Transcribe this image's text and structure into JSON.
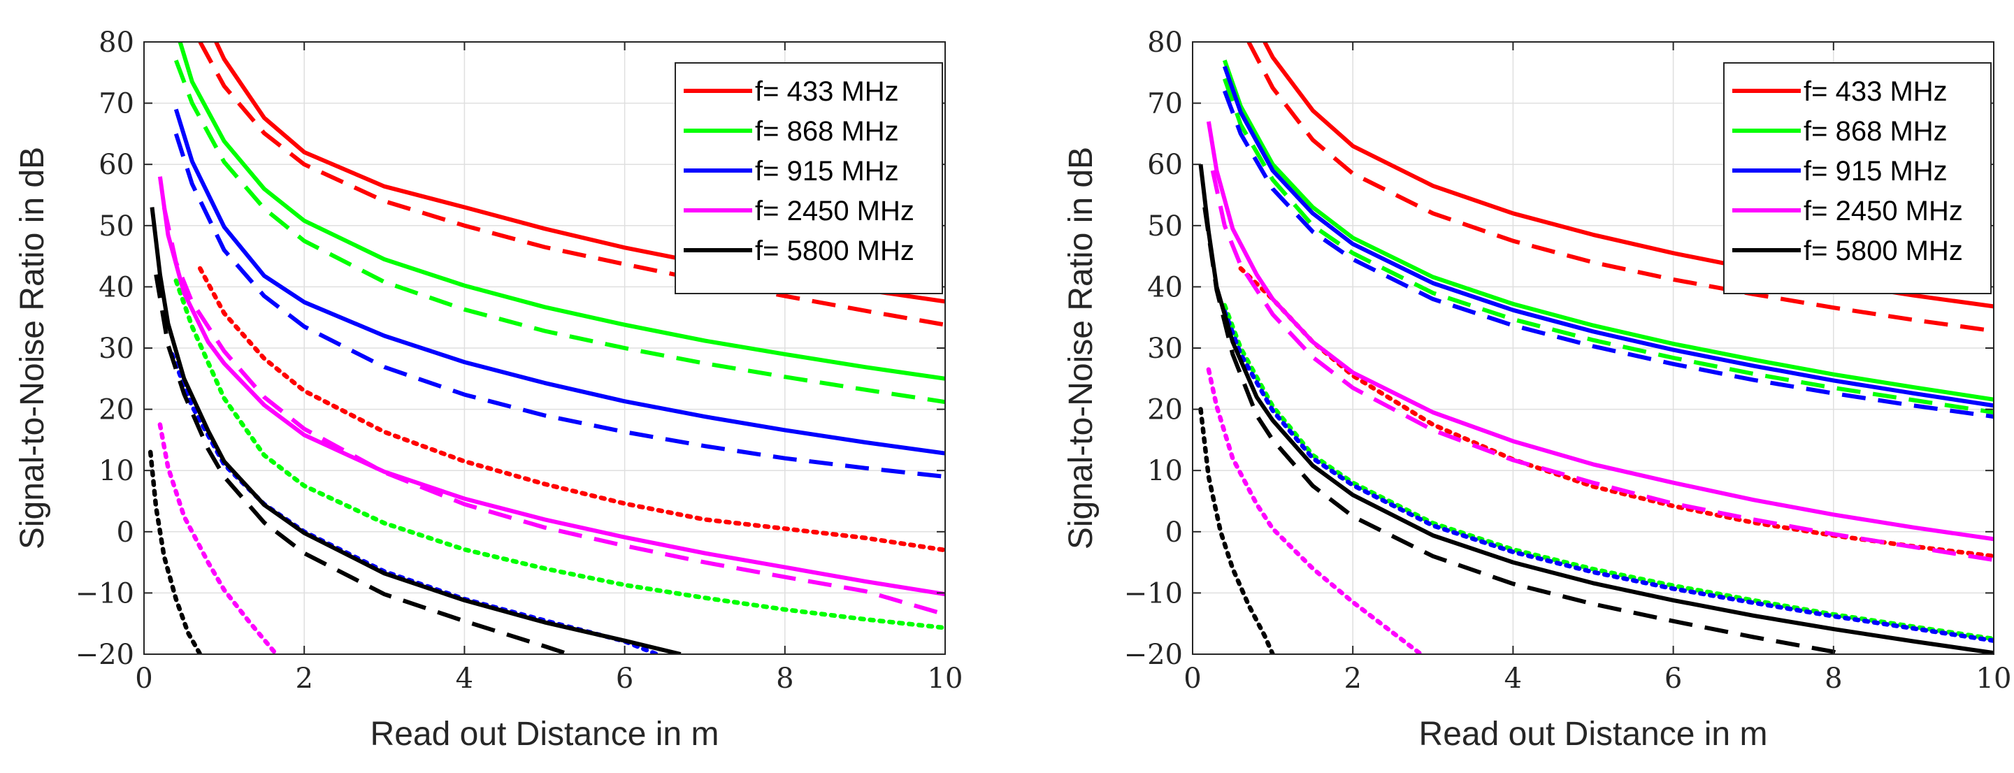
{
  "chart_data": [
    {
      "type": "line",
      "xlabel": "Read out Distance in m",
      "ylabel": "Signal-to-Noise Ratio in dB",
      "xlim": [
        0,
        10
      ],
      "ylim": [
        -20,
        80
      ],
      "xticks": [
        "0",
        "2",
        "4",
        "6",
        "8",
        "10"
      ],
      "yticks": [
        "−20",
        "−10",
        "0",
        "10",
        "20",
        "30",
        "40",
        "50",
        "60",
        "70",
        "80"
      ],
      "grid": true,
      "legend_position": "top-right",
      "legend": [
        {
          "label": "f= 433 MHz",
          "color": "#ff0000"
        },
        {
          "label": "f= 868 MHz",
          "color": "#00ff00"
        },
        {
          "label": "f= 915 MHz",
          "color": "#0000ff"
        },
        {
          "label": "f= 2450 MHz",
          "color": "#ff00ff"
        },
        {
          "label": "f= 5800 MHz",
          "color": "#000000"
        }
      ],
      "series": [
        {
          "name": "433 MHz solid",
          "color": "#ff0000",
          "style": "solid",
          "x": [
            0.9,
            1,
            1.5,
            2,
            3,
            4,
            5,
            6,
            7,
            8,
            9,
            10
          ],
          "y": [
            80,
            77.2,
            67.6,
            62.0,
            56.4,
            53.0,
            49.5,
            46.4,
            43.8,
            41.5,
            39.5,
            37.6
          ]
        },
        {
          "name": "433 MHz dashed",
          "color": "#ff0000",
          "style": "dashed",
          "x": [
            0.7,
            1,
            1.5,
            2,
            3,
            4,
            5,
            6,
            7,
            8,
            9,
            10
          ],
          "y": [
            80,
            72.8,
            65.1,
            60.0,
            54.0,
            50.0,
            46.5,
            43.7,
            41.0,
            38.5,
            36.1,
            33.8
          ]
        },
        {
          "name": "433 MHz dotted",
          "color": "#ff0000",
          "style": "dotted",
          "x": [
            0.7,
            1,
            1.5,
            2,
            3,
            4,
            5,
            6,
            7,
            8,
            9,
            10
          ],
          "y": [
            43.0,
            35.7,
            28.3,
            23.0,
            16.3,
            11.5,
            7.8,
            4.6,
            2.0,
            0.5,
            -1.0,
            -3.0
          ]
        },
        {
          "name": "868 MHz solid",
          "color": "#00ff00",
          "style": "solid",
          "x": [
            0.45,
            0.6,
            1,
            1.5,
            2,
            3,
            4,
            5,
            6,
            7,
            8,
            9,
            10
          ],
          "y": [
            80,
            73.5,
            63.8,
            56.0,
            50.8,
            44.5,
            40.2,
            36.7,
            33.8,
            31.2,
            29.0,
            26.9,
            25.0
          ]
        },
        {
          "name": "868 MHz dashed",
          "color": "#00ff00",
          "style": "dashed",
          "x": [
            0.4,
            0.6,
            1,
            1.5,
            2,
            3,
            4,
            5,
            6,
            7,
            8,
            9,
            10
          ],
          "y": [
            77.0,
            70.0,
            60.4,
            52.8,
            47.5,
            40.8,
            36.3,
            32.8,
            30.0,
            27.5,
            25.3,
            23.2,
            21.2
          ]
        },
        {
          "name": "868 MHz dotted",
          "color": "#00ff00",
          "style": "dotted",
          "x": [
            0.4,
            0.6,
            1,
            1.5,
            2,
            3,
            4,
            5,
            6,
            7,
            8,
            9,
            10
          ],
          "y": [
            41.0,
            33.5,
            21.8,
            12.5,
            7.5,
            1.4,
            -2.9,
            -6.0,
            -8.7,
            -10.8,
            -12.7,
            -14.3,
            -15.7
          ]
        },
        {
          "name": "915 MHz solid",
          "color": "#0000ff",
          "style": "solid",
          "x": [
            0.4,
            0.6,
            1,
            1.5,
            2,
            3,
            4,
            5,
            6,
            7,
            8,
            9,
            10
          ],
          "y": [
            69.0,
            60.5,
            49.8,
            41.8,
            37.5,
            32.0,
            27.7,
            24.3,
            21.3,
            18.8,
            16.6,
            14.6,
            12.8
          ]
        },
        {
          "name": "915 MHz dashed",
          "color": "#0000ff",
          "style": "dashed",
          "x": [
            0.4,
            0.6,
            1,
            1.5,
            2,
            3,
            4,
            5,
            6,
            7,
            8,
            9,
            10
          ],
          "y": [
            65.0,
            56.8,
            46.0,
            38.5,
            33.5,
            26.9,
            22.4,
            19.0,
            16.3,
            14.0,
            12.0,
            10.4,
            9.0
          ]
        },
        {
          "name": "915 MHz dotted",
          "color": "#0000ff",
          "style": "dotted",
          "x": [
            0.35,
            0.6,
            1,
            1.5,
            2,
            3,
            4,
            5,
            6,
            6.4
          ],
          "y": [
            29.0,
            20.5,
            11.0,
            4.5,
            0.0,
            -6.5,
            -11.0,
            -14.5,
            -17.9,
            -20
          ]
        },
        {
          "name": "2450 MHz solid",
          "color": "#ff00ff",
          "style": "solid",
          "x": [
            0.2,
            0.3,
            0.5,
            0.8,
            1,
            1.5,
            2,
            3,
            4,
            5,
            6,
            7,
            8,
            9,
            10
          ],
          "y": [
            58.0,
            48.5,
            39.0,
            31.0,
            27.5,
            20.7,
            15.8,
            9.8,
            5.4,
            2.0,
            -0.9,
            -3.5,
            -5.8,
            -8.1,
            -10.2
          ]
        },
        {
          "name": "2450 MHz dashed",
          "color": "#ff00ff",
          "style": "dashed",
          "x": [
            0.25,
            0.4,
            0.6,
            1,
            1.5,
            2,
            3,
            4,
            5,
            6,
            7,
            8,
            9,
            10
          ],
          "y": [
            53.0,
            44.0,
            37.5,
            29.5,
            22.0,
            16.8,
            9.7,
            4.5,
            0.7,
            -2.3,
            -5.0,
            -7.4,
            -9.7,
            -13.5
          ]
        },
        {
          "name": "2450 MHz dotted",
          "color": "#ff00ff",
          "style": "dotted",
          "x": [
            0.2,
            0.3,
            0.5,
            0.8,
            1,
            1.3,
            1.65
          ],
          "y": [
            17.5,
            10.5,
            2.5,
            -5.0,
            -9.5,
            -14.5,
            -20
          ]
        },
        {
          "name": "5800 MHz solid",
          "color": "#000000",
          "style": "solid",
          "x": [
            0.1,
            0.2,
            0.3,
            0.5,
            0.8,
            1,
            1.5,
            2,
            3,
            4,
            5,
            6,
            6.7
          ],
          "y": [
            53.0,
            42.0,
            34.0,
            25.0,
            16.5,
            11.5,
            4.4,
            -0.2,
            -6.8,
            -11.2,
            -14.8,
            -17.8,
            -20
          ]
        },
        {
          "name": "5800 MHz dashed",
          "color": "#000000",
          "style": "dashed",
          "x": [
            0.15,
            0.3,
            0.5,
            0.8,
            1,
            1.5,
            2,
            3,
            4,
            5,
            5.3
          ],
          "y": [
            42.0,
            30.5,
            22.5,
            13.5,
            9.0,
            1.5,
            -3.5,
            -10.2,
            -14.6,
            -18.7,
            -20
          ]
        },
        {
          "name": "5800 MHz dotted",
          "color": "#000000",
          "style": "dotted",
          "x": [
            0.08,
            0.15,
            0.25,
            0.4,
            0.55,
            0.7
          ],
          "y": [
            13.0,
            4.0,
            -4.0,
            -11.0,
            -16.5,
            -20
          ]
        }
      ]
    },
    {
      "type": "line",
      "xlabel": "Read out Distance in m",
      "ylabel": "Signal-to-Noise Ratio in dB",
      "xlim": [
        0,
        10
      ],
      "ylim": [
        -20,
        80
      ],
      "xticks": [
        "0",
        "2",
        "4",
        "6",
        "8",
        "10"
      ],
      "yticks": [
        "−20",
        "−10",
        "0",
        "10",
        "20",
        "30",
        "40",
        "50",
        "60",
        "70",
        "80"
      ],
      "grid": true,
      "legend_position": "top-right",
      "legend": [
        {
          "label": "f= 433 MHz",
          "color": "#ff0000"
        },
        {
          "label": "f= 868 MHz",
          "color": "#00ff00"
        },
        {
          "label": "f= 915 MHz",
          "color": "#0000ff"
        },
        {
          "label": "f= 2450 MHz",
          "color": "#ff00ff"
        },
        {
          "label": "f= 5800 MHz",
          "color": "#000000"
        }
      ],
      "series": [
        {
          "name": "433 MHz solid",
          "color": "#ff0000",
          "style": "solid",
          "x": [
            0.9,
            1,
            1.5,
            2,
            3,
            4,
            5,
            6,
            7,
            8,
            9,
            10
          ],
          "y": [
            80,
            77.5,
            68.8,
            63.0,
            56.5,
            52.0,
            48.5,
            45.5,
            42.9,
            40.6,
            38.6,
            36.8
          ]
        },
        {
          "name": "433 MHz dashed",
          "color": "#ff0000",
          "style": "dashed",
          "x": [
            0.7,
            1,
            1.5,
            2,
            3,
            4,
            5,
            6,
            7,
            8,
            9,
            10
          ],
          "y": [
            80,
            72.5,
            64.0,
            58.5,
            52.0,
            47.5,
            44.0,
            41.2,
            38.8,
            36.6,
            34.6,
            32.8
          ]
        },
        {
          "name": "433 MHz dotted",
          "color": "#ff0000",
          "style": "dotted",
          "x": [
            0.6,
            1,
            1.5,
            2,
            3,
            4,
            5,
            6,
            7,
            8,
            9,
            10
          ],
          "y": [
            43.0,
            38.0,
            31.0,
            25.5,
            17.5,
            11.8,
            7.4,
            4.2,
            1.5,
            -0.6,
            -2.4,
            -4.0
          ]
        },
        {
          "name": "868 MHz solid",
          "color": "#00ff00",
          "style": "solid",
          "x": [
            0.4,
            0.6,
            1,
            1.5,
            2,
            3,
            4,
            5,
            6,
            7,
            8,
            9,
            10
          ],
          "y": [
            77.0,
            69.5,
            60.0,
            53.0,
            48.0,
            41.6,
            37.2,
            33.7,
            30.7,
            28.1,
            25.7,
            23.6,
            21.6
          ]
        },
        {
          "name": "868 MHz dashed",
          "color": "#00ff00",
          "style": "dashed",
          "x": [
            0.4,
            0.6,
            1,
            1.5,
            2,
            3,
            4,
            5,
            6,
            7,
            8,
            9,
            10
          ],
          "y": [
            74.0,
            66.5,
            57.5,
            50.0,
            45.5,
            39.0,
            34.7,
            31.3,
            28.4,
            25.8,
            23.5,
            21.5,
            19.5
          ]
        },
        {
          "name": "868 MHz dotted",
          "color": "#00ff00",
          "style": "dotted",
          "x": [
            0.4,
            0.6,
            1,
            1.5,
            2,
            3,
            4,
            5,
            6,
            7,
            8,
            9,
            10
          ],
          "y": [
            37.0,
            30.0,
            20.5,
            12.5,
            8.0,
            1.4,
            -2.9,
            -6.1,
            -8.8,
            -11.2,
            -13.5,
            -15.5,
            -17.5
          ]
        },
        {
          "name": "915 MHz solid",
          "color": "#0000ff",
          "style": "solid",
          "x": [
            0.4,
            0.6,
            1,
            1.5,
            2,
            3,
            4,
            5,
            6,
            7,
            8,
            9,
            10
          ],
          "y": [
            76.0,
            68.5,
            59.0,
            52.0,
            47.0,
            40.6,
            36.2,
            32.7,
            29.7,
            27.1,
            24.7,
            22.6,
            20.6
          ]
        },
        {
          "name": "915 MHz dashed",
          "color": "#0000ff",
          "style": "dashed",
          "x": [
            0.4,
            0.6,
            1,
            1.5,
            2,
            3,
            4,
            5,
            6,
            7,
            8,
            9,
            10
          ],
          "y": [
            72.0,
            65.0,
            56.0,
            49.0,
            44.5,
            38.0,
            33.7,
            30.3,
            27.4,
            24.8,
            22.6,
            20.6,
            18.8
          ]
        },
        {
          "name": "915 MHz dotted",
          "color": "#0000ff",
          "style": "dotted",
          "x": [
            0.4,
            0.6,
            1,
            1.5,
            2,
            3,
            4,
            5,
            6,
            7,
            8,
            9,
            10
          ],
          "y": [
            36.0,
            29.0,
            19.8,
            12.0,
            7.6,
            1.0,
            -3.3,
            -6.6,
            -9.3,
            -11.6,
            -13.8,
            -15.8,
            -17.8
          ]
        },
        {
          "name": "2450 MHz solid",
          "color": "#ff00ff",
          "style": "solid",
          "x": [
            0.2,
            0.3,
            0.5,
            0.8,
            1,
            1.5,
            2,
            3,
            4,
            5,
            6,
            7,
            8,
            9,
            10
          ],
          "y": [
            67.0,
            59.0,
            49.5,
            42.0,
            38.0,
            31.0,
            26.0,
            19.5,
            14.8,
            11.0,
            8.0,
            5.2,
            2.8,
            0.7,
            -1.2
          ]
        },
        {
          "name": "2450 MHz dashed",
          "color": "#ff00ff",
          "style": "dashed",
          "x": [
            0.25,
            0.4,
            0.6,
            1,
            1.5,
            2,
            3,
            4,
            5,
            6,
            7,
            8,
            9,
            10
          ],
          "y": [
            59.0,
            50.0,
            43.5,
            35.5,
            28.5,
            23.5,
            16.6,
            11.7,
            8.0,
            4.6,
            2.0,
            -0.4,
            -2.5,
            -4.6
          ]
        },
        {
          "name": "2450 MHz dotted",
          "color": "#ff00ff",
          "style": "dotted",
          "x": [
            0.2,
            0.3,
            0.5,
            0.8,
            1,
            1.5,
            2,
            2.5,
            2.85
          ],
          "y": [
            26.5,
            20.5,
            12.0,
            4.5,
            0.5,
            -6.0,
            -11.5,
            -16.5,
            -20
          ]
        },
        {
          "name": "5800 MHz solid",
          "color": "#000000",
          "style": "solid",
          "x": [
            0.1,
            0.2,
            0.3,
            0.5,
            0.8,
            1,
            1.5,
            2,
            3,
            4,
            5,
            6,
            7,
            8,
            9,
            10
          ],
          "y": [
            60.0,
            49.0,
            40.0,
            31.0,
            22.0,
            18.2,
            10.8,
            6.0,
            -0.6,
            -5.0,
            -8.4,
            -11.2,
            -13.7,
            -15.9,
            -17.9,
            -19.8
          ]
        },
        {
          "name": "5800 MHz dashed",
          "color": "#000000",
          "style": "dashed",
          "x": [
            0.15,
            0.3,
            0.5,
            0.8,
            1,
            1.5,
            2,
            3,
            4,
            5,
            6,
            7,
            8,
            8.1
          ],
          "y": [
            53.0,
            39.5,
            29.0,
            19.0,
            15.0,
            7.5,
            2.5,
            -4.0,
            -8.5,
            -11.8,
            -14.6,
            -17.2,
            -19.6,
            -20
          ]
        },
        {
          "name": "5800 MHz dotted",
          "color": "#000000",
          "style": "dotted",
          "x": [
            0.1,
            0.2,
            0.35,
            0.5,
            0.7,
            0.9,
            1.0
          ],
          "y": [
            20.0,
            9.0,
            0.0,
            -6.0,
            -12.0,
            -17.0,
            -20
          ]
        }
      ]
    }
  ]
}
